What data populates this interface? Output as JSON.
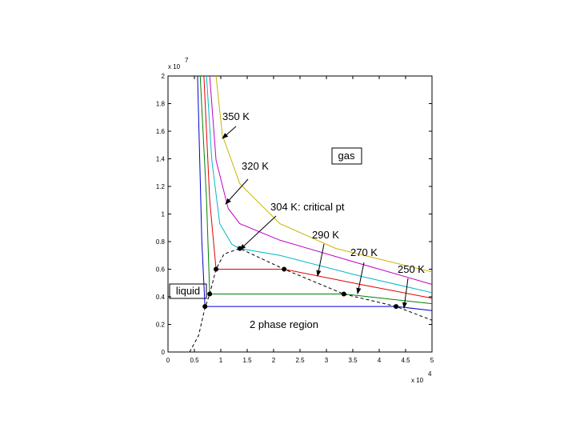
{
  "chart_data": {
    "type": "line",
    "xlim": [
      0,
      5
    ],
    "xticks": [
      0,
      0.5,
      1,
      1.5,
      2,
      2.5,
      3,
      3.5,
      4,
      4.5,
      5
    ],
    "ylim": [
      0,
      2
    ],
    "yticks": [
      0,
      0.2,
      0.4,
      0.6,
      0.8,
      1,
      1.2,
      1.4,
      1.6,
      1.8,
      2
    ],
    "x_multiplier": {
      "base": "x 10",
      "exponent": "4"
    },
    "y_multiplier": {
      "base": "x 10",
      "exponent": "7"
    },
    "series": [
      {
        "color": "#c8b400",
        "dashed": false,
        "x": [
          0.91,
          1.03,
          1.36,
          2.12,
          3.18,
          5
        ],
        "values": [
          2,
          1.57,
          1.22,
          0.93,
          0.75,
          0.58
        ]
      },
      {
        "color": "#c000c0",
        "dashed": false,
        "x": [
          0.79,
          0.91,
          1.14,
          1.36,
          2.12,
          3.64,
          5
        ],
        "values": [
          2,
          1.39,
          1.04,
          0.93,
          0.81,
          0.64,
          0.49
        ]
      },
      {
        "color": "#00b8c8",
        "dashed": false,
        "x": [
          0.73,
          0.83,
          0.98,
          1.21,
          1.36,
          2.12,
          3.64,
          5
        ],
        "values": [
          2,
          1.39,
          0.93,
          0.78,
          0.75,
          0.7,
          0.55,
          0.43
        ]
      },
      {
        "color": "#e00000",
        "dashed": false,
        "x": [
          0.68,
          0.79,
          0.91,
          2.2,
          3.64,
          5
        ],
        "values": [
          2,
          1.1,
          0.6,
          0.6,
          0.49,
          0.39
        ]
      },
      {
        "color": "#008000",
        "dashed": false,
        "x": [
          0.61,
          0.73,
          0.79,
          3.33,
          5
        ],
        "values": [
          2,
          1.1,
          0.42,
          0.42,
          0.35
        ]
      },
      {
        "color": "#0000d0",
        "dashed": false,
        "x": [
          0.56,
          0.64,
          0.7,
          4.32,
          5
        ],
        "values": [
          2,
          0.81,
          0.33,
          0.33,
          0.3
        ]
      },
      {
        "color": "#000000",
        "dashed": true,
        "x": [
          0.41,
          0.58,
          0.7,
          0.79,
          0.91,
          1.06,
          1.36,
          2.2,
          3.33,
          4.32,
          5
        ],
        "values": [
          0,
          0.12,
          0.32,
          0.42,
          0.6,
          0.71,
          0.75,
          0.6,
          0.42,
          0.33,
          0.23
        ]
      }
    ],
    "points": {
      "color": "#000000",
      "x": [
        0.91,
        2.2,
        0.79,
        3.33,
        0.7,
        4.32,
        1.36
      ],
      "values": [
        0.6,
        0.6,
        0.42,
        0.42,
        0.33,
        0.33,
        0.75
      ]
    },
    "annotations": [
      {
        "text": "350 K"
      },
      {
        "text": "320 K"
      },
      {
        "text": "304 K: critical pt"
      },
      {
        "text": "290 K"
      },
      {
        "text": "270 K"
      },
      {
        "text": "250 K"
      }
    ],
    "region_labels": {
      "gas": "gas",
      "liquid": "liquid",
      "two_phase": "2 phase region"
    }
  }
}
